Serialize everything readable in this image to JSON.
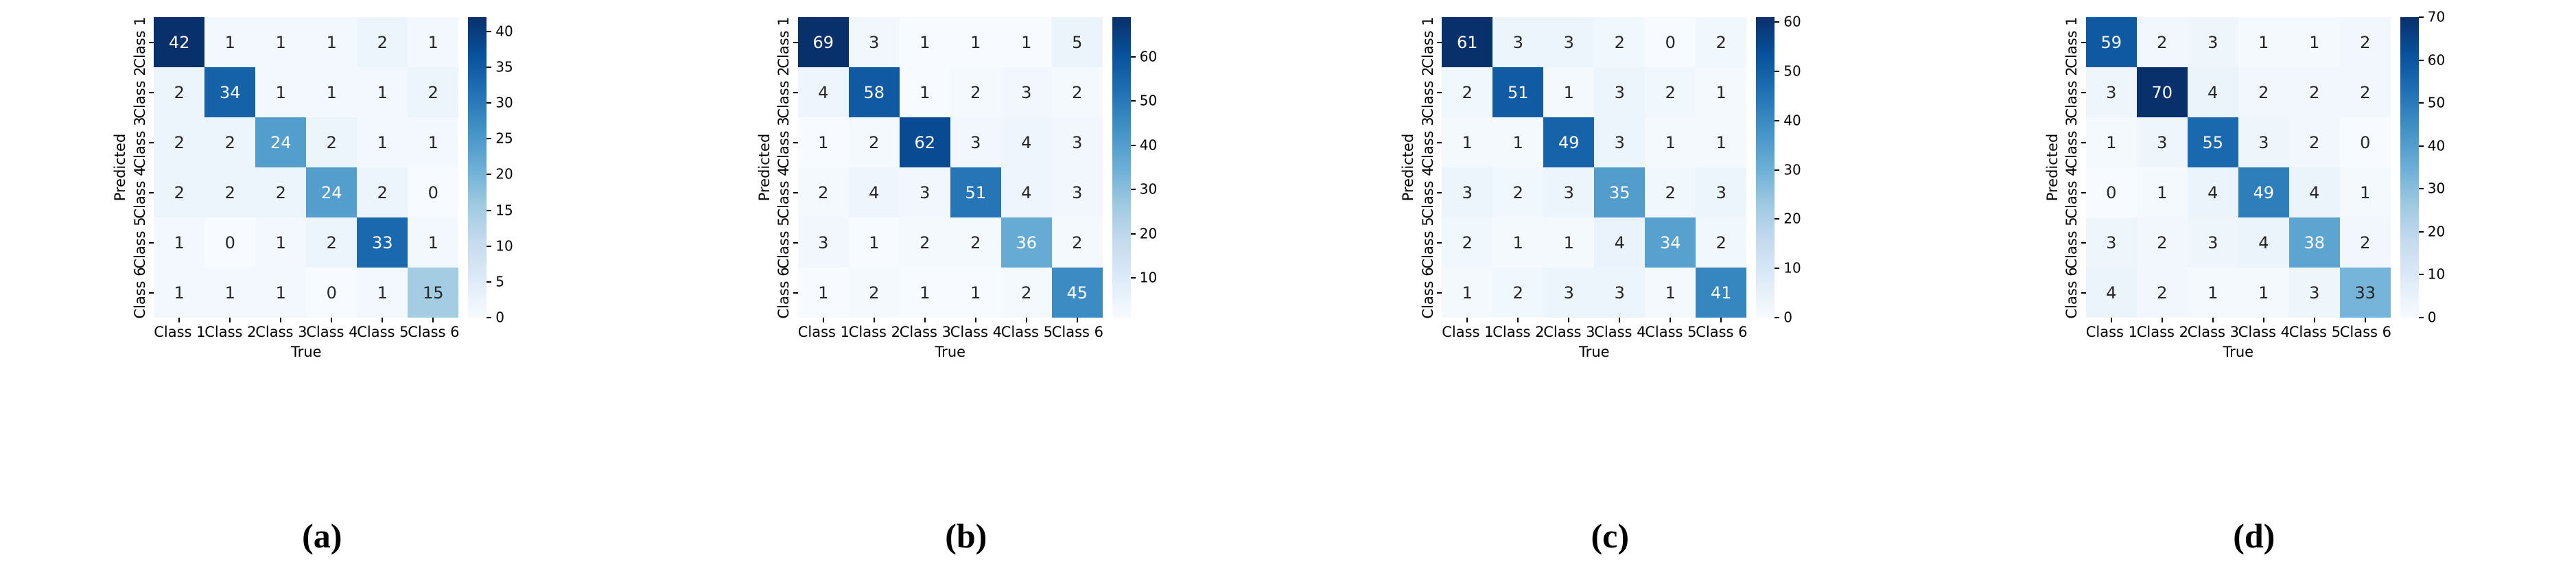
{
  "figure": {
    "background": "#ffffff",
    "colormap_name": "Blues",
    "colormap_max_hex": "#08306b",
    "colormap_min_hex": "#f7fbff",
    "annotation_text_dark": "#262626",
    "annotation_text_light": "#ffffff"
  },
  "chart_data": [
    {
      "type": "heatmap",
      "caption": "(a)",
      "xlabel": "True",
      "ylabel": "Predicted",
      "x_tick_labels": [
        "Class 1",
        "Class 2",
        "Class 3",
        "Class 4",
        "Class 5",
        "Class 6"
      ],
      "y_tick_labels": [
        "Class 1",
        "Class 2",
        "Class 3",
        "Class 4",
        "Class 5",
        "Class 6"
      ],
      "matrix": [
        [
          42,
          1,
          1,
          1,
          2,
          1
        ],
        [
          2,
          34,
          1,
          1,
          1,
          2
        ],
        [
          2,
          2,
          24,
          2,
          1,
          1
        ],
        [
          2,
          2,
          2,
          24,
          2,
          0
        ],
        [
          1,
          0,
          1,
          2,
          33,
          1
        ],
        [
          1,
          1,
          1,
          0,
          1,
          15
        ]
      ],
      "vmin": 0,
      "vmax": 42,
      "colorbar_ticks": [
        0,
        5,
        10,
        15,
        20,
        25,
        30,
        35,
        40
      ],
      "legend_position": "right",
      "grid": false
    },
    {
      "type": "heatmap",
      "caption": "(b)",
      "xlabel": "True",
      "ylabel": "Predicted",
      "x_tick_labels": [
        "Class 1",
        "Class 2",
        "Class 3",
        "Class 4",
        "Class 5",
        "Class 6"
      ],
      "y_tick_labels": [
        "Class 1",
        "Class 2",
        "Class 3",
        "Class 4",
        "Class 5",
        "Class 6"
      ],
      "matrix": [
        [
          69,
          3,
          1,
          1,
          1,
          5
        ],
        [
          4,
          58,
          1,
          2,
          3,
          2
        ],
        [
          1,
          2,
          62,
          3,
          4,
          3
        ],
        [
          2,
          4,
          3,
          51,
          4,
          3
        ],
        [
          3,
          1,
          2,
          2,
          36,
          2
        ],
        [
          1,
          2,
          1,
          1,
          2,
          45
        ]
      ],
      "vmin": 1,
      "vmax": 69,
      "colorbar_ticks": [
        10,
        20,
        30,
        40,
        50,
        60
      ],
      "legend_position": "right",
      "grid": false
    },
    {
      "type": "heatmap",
      "caption": "(c)",
      "xlabel": "True",
      "ylabel": "Predicted",
      "x_tick_labels": [
        "Class 1",
        "Class 2",
        "Class 3",
        "Class 4",
        "Class 5",
        "Class 6"
      ],
      "y_tick_labels": [
        "Class 1",
        "Class 2",
        "Class 3",
        "Class 4",
        "Class 5",
        "Class 6"
      ],
      "matrix": [
        [
          61,
          3,
          3,
          2,
          0,
          2
        ],
        [
          2,
          51,
          1,
          3,
          2,
          1
        ],
        [
          1,
          1,
          49,
          3,
          1,
          1
        ],
        [
          3,
          2,
          3,
          35,
          2,
          3
        ],
        [
          2,
          1,
          1,
          4,
          34,
          2
        ],
        [
          1,
          2,
          3,
          3,
          1,
          41
        ]
      ],
      "vmin": 0,
      "vmax": 61,
      "colorbar_ticks": [
        0,
        10,
        20,
        30,
        40,
        50,
        60
      ],
      "legend_position": "right",
      "grid": false
    },
    {
      "type": "heatmap",
      "caption": "(d)",
      "xlabel": "True",
      "ylabel": "Predicted",
      "x_tick_labels": [
        "Class 1",
        "Class 2",
        "Class 3",
        "Class 4",
        "Class 5",
        "Class 6"
      ],
      "y_tick_labels": [
        "Class 1",
        "Class 2",
        "Class 3",
        "Class 4",
        "Class 5",
        "Class 6"
      ],
      "matrix": [
        [
          59,
          2,
          3,
          1,
          1,
          2
        ],
        [
          3,
          70,
          4,
          2,
          2,
          2
        ],
        [
          1,
          3,
          55,
          3,
          2,
          0
        ],
        [
          0,
          1,
          4,
          49,
          4,
          1
        ],
        [
          3,
          2,
          3,
          4,
          38,
          2
        ],
        [
          4,
          2,
          1,
          1,
          3,
          33
        ]
      ],
      "vmin": 0,
      "vmax": 70,
      "colorbar_ticks": [
        0,
        10,
        20,
        30,
        40,
        50,
        60,
        70
      ],
      "legend_position": "right",
      "grid": false
    }
  ]
}
